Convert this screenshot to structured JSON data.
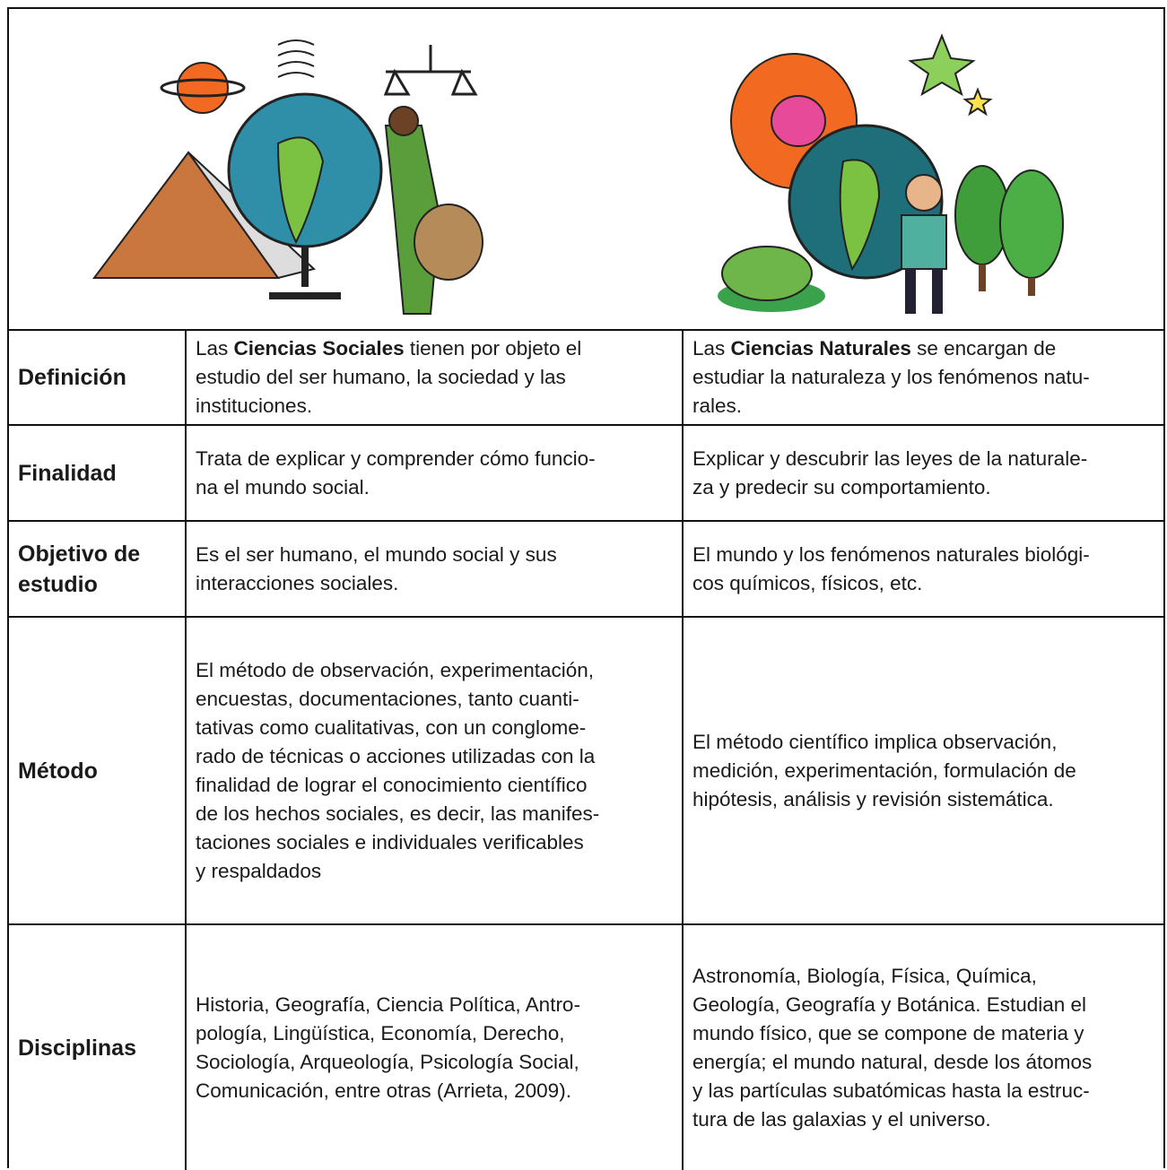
{
  "table": {
    "rows": [
      {
        "label": [
          "Definición"
        ],
        "social": [
          [
            {
              "text": "Las "
            },
            {
              "text": "Ciencias Sociales",
              "bold": true
            },
            {
              "text": " tienen por objeto el"
            }
          ],
          "estudio del ser humano, la sociedad y las",
          "instituciones."
        ],
        "natural": [
          [
            {
              "text": "Las "
            },
            {
              "text": "Ciencias Naturales",
              "bold": true
            },
            {
              "text": " se encargan de"
            }
          ],
          "estudiar la naturaleza y los fenómenos natu-",
          "rales."
        ]
      },
      {
        "label": [
          "Finalidad"
        ],
        "social": [
          "Trata de explicar y comprender cómo funcio-",
          "na el mundo social."
        ],
        "natural": [
          "Explicar y descubrir las leyes de la naturale-",
          "za y predecir su comportamiento."
        ]
      },
      {
        "label": [
          "Objetivo de",
          "estudio"
        ],
        "social": [
          "Es el ser humano, el mundo social y sus",
          "interacciones sociales."
        ],
        "natural": [
          "El mundo y los fenómenos naturales biológi-",
          "cos químicos, físicos, etc."
        ]
      },
      {
        "label": [
          "Método"
        ],
        "social": [
          "El método de observación, experimentación,",
          "encuestas, documentaciones, tanto cuanti-",
          "tativas como cualitativas, con un conglome-",
          "rado de técnicas o acciones utilizadas con la",
          "finalidad de lograr el conocimiento científico",
          "de los hechos sociales, es decir, las manifes-",
          "taciones sociales e individuales verificables",
          "y respaldados"
        ],
        "natural": [
          "El método científico implica observación,",
          "medición, experimentación, formulación de",
          "hipótesis, análisis y revisión sistemática."
        ]
      },
      {
        "label": [
          "Disciplinas"
        ],
        "social": [
          "Historia, Geografía, Ciencia Política, Antro-",
          "pología, Lingüística, Economía, Derecho,",
          "Sociología, Arqueología, Psicología Social,",
          "Comunicación, entre otras (Arrieta, 2009)."
        ],
        "natural": [
          "Astronomía, Biología, Física, Química,",
          "Geología, Geografía y Botánica. Estudian el",
          "mundo físico, que se compone de materia y",
          "energía; el mundo natural, desde los átomos",
          "y las partículas subatómicas hasta la estruc-",
          "tura de las galaxias y el universo."
        ]
      }
    ]
  }
}
